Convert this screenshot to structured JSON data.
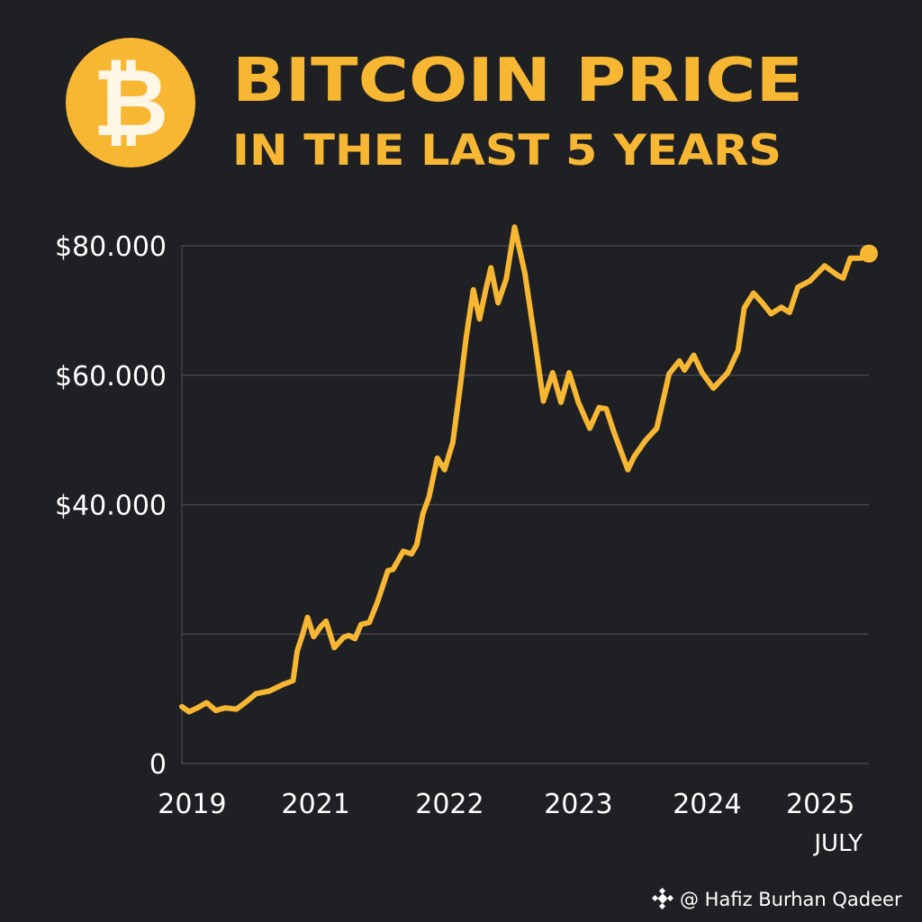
{
  "header": {
    "logo_icon": "bitcoin-icon",
    "logo_glyph": "₿",
    "title": "BITCOIN PRICE",
    "subtitle": "IN THE LAST 5 YEARS"
  },
  "credit": {
    "icon": "binance-diamond-icon",
    "text": "@ Hafiz Burhan Qadeer"
  },
  "colors": {
    "background": "#1f2024",
    "accent": "#f7b733",
    "text": "#ffffff",
    "grid": "#4a4b50"
  },
  "chart_data": {
    "type": "line",
    "title": "BITCOIN PRICE",
    "subtitle": "IN THE LAST 5 YEARS",
    "xlabel": "",
    "ylabel": "",
    "ylim": [
      0,
      80000
    ],
    "xlim": [
      2019,
      2025.67
    ],
    "grid": true,
    "legend": "none",
    "yticks": [
      {
        "value": 80000,
        "label": "$80.000"
      },
      {
        "value": 60000,
        "label": "$60.000"
      },
      {
        "value": 40000,
        "label": "$40.000"
      },
      {
        "value": 0,
        "label": "0"
      }
    ],
    "gridlines": [
      0,
      20000,
      40000,
      60000,
      80000
    ],
    "xticks": [
      {
        "value": 2019.1,
        "label": "2019"
      },
      {
        "value": 2020.3,
        "label": "2021"
      },
      {
        "value": 2021.6,
        "label": "2022"
      },
      {
        "value": 2022.85,
        "label": "2023"
      },
      {
        "value": 2024.1,
        "label": "2024"
      },
      {
        "value": 2025.2,
        "label": "2025"
      }
    ],
    "x_note": "JULY",
    "series": [
      {
        "color": "#f7b733",
        "end_marker": true,
        "points": [
          [
            2019.0,
            8800
          ],
          [
            2019.07,
            8000
          ],
          [
            2019.15,
            8600
          ],
          [
            2019.24,
            9400
          ],
          [
            2019.33,
            8200
          ],
          [
            2019.42,
            8600
          ],
          [
            2019.53,
            8400
          ],
          [
            2019.63,
            9600
          ],
          [
            2019.72,
            10800
          ],
          [
            2019.85,
            11200
          ],
          [
            2019.98,
            12200
          ],
          [
            2020.08,
            12800
          ],
          [
            2020.12,
            17400
          ],
          [
            2020.17,
            19800
          ],
          [
            2020.22,
            22600
          ],
          [
            2020.28,
            19600
          ],
          [
            2020.35,
            21200
          ],
          [
            2020.4,
            22000
          ],
          [
            2020.48,
            17900
          ],
          [
            2020.57,
            19500
          ],
          [
            2020.62,
            19800
          ],
          [
            2020.68,
            19300
          ],
          [
            2020.74,
            21500
          ],
          [
            2020.82,
            21800
          ],
          [
            2020.9,
            25000
          ],
          [
            2021.0,
            29800
          ],
          [
            2021.05,
            30000
          ],
          [
            2021.15,
            32800
          ],
          [
            2021.23,
            32400
          ],
          [
            2021.28,
            33800
          ],
          [
            2021.34,
            38600
          ],
          [
            2021.4,
            41200
          ],
          [
            2021.48,
            47200
          ],
          [
            2021.55,
            45400
          ],
          [
            2021.63,
            49600
          ],
          [
            2021.7,
            58000
          ],
          [
            2021.76,
            65800
          ],
          [
            2021.83,
            73200
          ],
          [
            2021.89,
            68700
          ],
          [
            2021.95,
            73200
          ],
          [
            2022.0,
            76600
          ],
          [
            2022.07,
            71200
          ],
          [
            2022.15,
            74900
          ],
          [
            2022.23,
            82900
          ],
          [
            2022.33,
            75800
          ],
          [
            2022.42,
            66200
          ],
          [
            2022.51,
            56000
          ],
          [
            2022.6,
            60400
          ],
          [
            2022.68,
            55800
          ],
          [
            2022.76,
            60400
          ],
          [
            2022.85,
            55800
          ],
          [
            2022.96,
            51800
          ],
          [
            2023.05,
            55000
          ],
          [
            2023.12,
            54800
          ],
          [
            2023.2,
            51000
          ],
          [
            2023.33,
            45400
          ],
          [
            2023.39,
            47400
          ],
          [
            2023.5,
            49900
          ],
          [
            2023.61,
            51800
          ],
          [
            2023.73,
            60200
          ],
          [
            2023.83,
            62200
          ],
          [
            2023.88,
            60800
          ],
          [
            2023.97,
            63100
          ],
          [
            2024.05,
            60400
          ],
          [
            2024.16,
            58000
          ],
          [
            2024.3,
            60400
          ],
          [
            2024.4,
            63800
          ],
          [
            2024.46,
            70400
          ],
          [
            2024.55,
            72700
          ],
          [
            2024.64,
            71100
          ],
          [
            2024.72,
            69500
          ],
          [
            2024.82,
            70500
          ],
          [
            2024.9,
            69700
          ],
          [
            2024.98,
            73600
          ],
          [
            2025.1,
            74600
          ],
          [
            2025.24,
            76900
          ],
          [
            2025.37,
            75400
          ],
          [
            2025.42,
            75000
          ],
          [
            2025.49,
            78100
          ],
          [
            2025.59,
            78100
          ],
          [
            2025.67,
            78800
          ]
        ]
      }
    ]
  }
}
